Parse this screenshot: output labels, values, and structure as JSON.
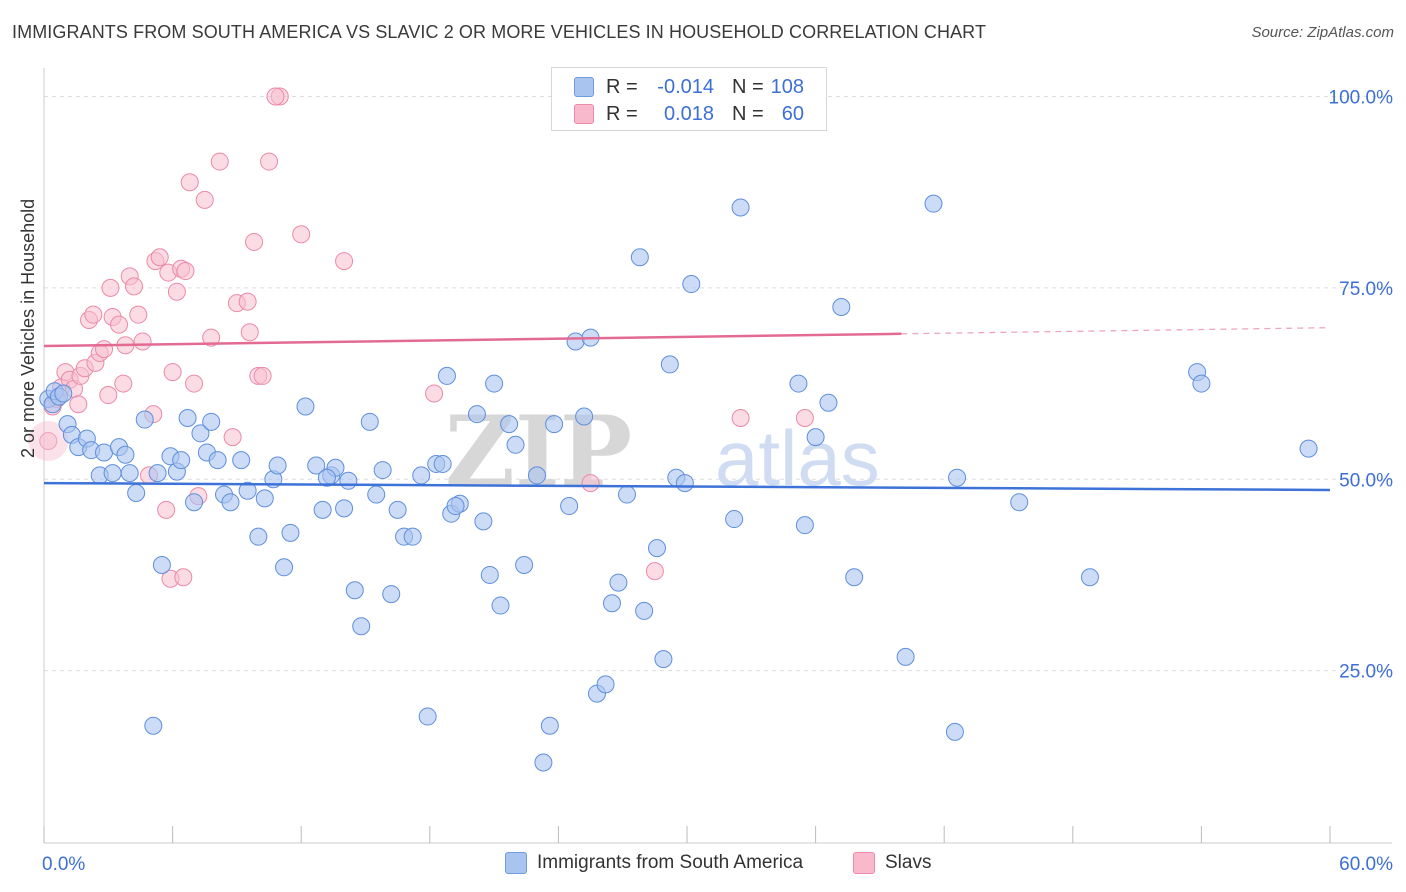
{
  "title": "IMMIGRANTS FROM SOUTH AMERICA VS SLAVIC 2 OR MORE VEHICLES IN HOUSEHOLD CORRELATION CHART",
  "source": "Source: ZipAtlas.com",
  "watermark": {
    "zip": "ZIP",
    "atlas": "atlas"
  },
  "legend": {
    "r_label": "R =",
    "n_label": "N =",
    "rows": [
      {
        "name": "Immigrants from South America",
        "r": "-0.014",
        "n": "108",
        "color": "#a9c4ef",
        "edge": "#6f9be0"
      },
      {
        "name": "Slavs",
        "r": "0.018",
        "n": "60",
        "color": "#f7b9cb",
        "edge": "#ec8aa8"
      }
    ]
  },
  "colors": {
    "blue_fill": "#aac5f0",
    "blue_edge": "#5f8fdc",
    "blue_line": "#3d72d8",
    "pink_fill": "#f7bfd0",
    "pink_edge": "#eb8aa8",
    "pink_line": "#e36a93",
    "axis_text": "#3d6fd6",
    "grid": "#dddddd"
  },
  "chart_data": {
    "type": "scatter",
    "title": "IMMIGRANTS FROM SOUTH AMERICA VS SLAVIC 2 OR MORE VEHICLES IN HOUSEHOLD CORRELATION CHART",
    "xlabel": "",
    "ylabel": "2 or more Vehicles in Household",
    "xlim": [
      0,
      60
    ],
    "ylim": [
      0,
      105
    ],
    "x_tick_labels": [
      {
        "value": 0,
        "label": "0.0%"
      },
      {
        "value": 60,
        "label": "60.0%"
      }
    ],
    "y_ticks": [
      {
        "value": 25,
        "label": "25.0%"
      },
      {
        "value": 50,
        "label": "50.0%"
      },
      {
        "value": 75,
        "label": "75.0%"
      },
      {
        "value": 100,
        "label": "100.0%"
      }
    ],
    "x_minor_ticks": [
      0,
      6,
      12,
      18,
      24,
      30,
      36,
      42,
      48,
      54,
      60
    ],
    "series": [
      {
        "name": "Immigrants from South America",
        "color": "#aac5f0",
        "trend": {
          "x": [
            0,
            60
          ],
          "y": [
            49.5,
            48.6
          ]
        },
        "points": [
          [
            0.2,
            60.5
          ],
          [
            0.4,
            59.8
          ],
          [
            0.5,
            61.5
          ],
          [
            0.7,
            60.8
          ],
          [
            0.9,
            61.2
          ],
          [
            1.1,
            57.2
          ],
          [
            1.3,
            55.8
          ],
          [
            1.6,
            54.2
          ],
          [
            2.0,
            55.3
          ],
          [
            2.2,
            53.8
          ],
          [
            2.6,
            50.5
          ],
          [
            2.8,
            53.5
          ],
          [
            3.2,
            50.8
          ],
          [
            3.5,
            54.2
          ],
          [
            3.8,
            53.2
          ],
          [
            4.0,
            50.8
          ],
          [
            4.3,
            48.2
          ],
          [
            4.7,
            57.8
          ],
          [
            5.1,
            17.8
          ],
          [
            5.3,
            50.8
          ],
          [
            5.5,
            38.8
          ],
          [
            5.9,
            53.0
          ],
          [
            6.2,
            51.0
          ],
          [
            6.4,
            52.5
          ],
          [
            6.7,
            58.0
          ],
          [
            7.0,
            47.0
          ],
          [
            7.3,
            56.0
          ],
          [
            7.6,
            53.5
          ],
          [
            7.8,
            57.5
          ],
          [
            8.1,
            52.5
          ],
          [
            8.4,
            48.0
          ],
          [
            8.7,
            47.0
          ],
          [
            9.2,
            52.5
          ],
          [
            9.5,
            48.5
          ],
          [
            10.0,
            42.5
          ],
          [
            10.3,
            47.5
          ],
          [
            10.7,
            50.0
          ],
          [
            11.2,
            38.5
          ],
          [
            11.5,
            43.0
          ],
          [
            10.9,
            51.8
          ],
          [
            12.2,
            59.5
          ],
          [
            12.7,
            51.8
          ],
          [
            13.0,
            46.0
          ],
          [
            13.4,
            50.5
          ],
          [
            13.6,
            51.5
          ],
          [
            13.2,
            50.2
          ],
          [
            14.2,
            49.8
          ],
          [
            14.5,
            35.5
          ],
          [
            14.8,
            30.8
          ],
          [
            14.0,
            46.2
          ],
          [
            15.2,
            57.5
          ],
          [
            15.5,
            48.0
          ],
          [
            15.8,
            51.2
          ],
          [
            16.2,
            35.0
          ],
          [
            16.5,
            46.0
          ],
          [
            16.8,
            42.5
          ],
          [
            17.2,
            42.5
          ],
          [
            17.6,
            50.5
          ],
          [
            17.9,
            19.0
          ],
          [
            18.3,
            52.0
          ],
          [
            18.6,
            52.0
          ],
          [
            19.0,
            45.5
          ],
          [
            18.8,
            63.5
          ],
          [
            19.4,
            46.8
          ],
          [
            19.2,
            46.5
          ],
          [
            20.2,
            58.5
          ],
          [
            20.5,
            44.5
          ],
          [
            20.8,
            37.5
          ],
          [
            21.3,
            33.5
          ],
          [
            21.7,
            57.2
          ],
          [
            21.0,
            62.5
          ],
          [
            22.0,
            54.5
          ],
          [
            22.4,
            38.8
          ],
          [
            23.0,
            50.5
          ],
          [
            23.3,
            13.0
          ],
          [
            23.6,
            17.8
          ],
          [
            23.8,
            57.2
          ],
          [
            24.5,
            46.5
          ],
          [
            24.8,
            68.0
          ],
          [
            25.5,
            68.5
          ],
          [
            25.2,
            58.2
          ],
          [
            25.8,
            22.0
          ],
          [
            26.2,
            23.2
          ],
          [
            26.5,
            33.8
          ],
          [
            26.8,
            36.5
          ],
          [
            27.2,
            48.0
          ],
          [
            27.8,
            79.0
          ],
          [
            28.0,
            32.8
          ],
          [
            28.6,
            41.0
          ],
          [
            28.9,
            26.5
          ],
          [
            29.2,
            65.0
          ],
          [
            29.5,
            50.2
          ],
          [
            29.9,
            49.5
          ],
          [
            30.2,
            75.5
          ],
          [
            32.2,
            44.8
          ],
          [
            32.5,
            85.5
          ],
          [
            35.2,
            62.5
          ],
          [
            35.5,
            44.0
          ],
          [
            36.0,
            55.5
          ],
          [
            36.6,
            60.0
          ],
          [
            37.2,
            72.5
          ],
          [
            37.8,
            37.2
          ],
          [
            40.2,
            26.8
          ],
          [
            41.5,
            86.0
          ],
          [
            42.5,
            17.0
          ],
          [
            42.6,
            50.2
          ],
          [
            45.5,
            47.0
          ],
          [
            48.8,
            37.2
          ],
          [
            53.8,
            64.0
          ],
          [
            54.0,
            62.5
          ],
          [
            59.0,
            54.0
          ]
        ]
      },
      {
        "name": "Slavs",
        "color": "#f7bfd0",
        "trend": {
          "x": [
            0,
            40
          ],
          "y": [
            67.4,
            69.0
          ]
        },
        "trend_dashed_to": {
          "x": 60,
          "y": 69.8
        },
        "points": [
          [
            0.2,
            55.0
          ],
          [
            0.4,
            59.5
          ],
          [
            0.6,
            60.5
          ],
          [
            0.8,
            62.0
          ],
          [
            1.0,
            64.0
          ],
          [
            1.2,
            63.0
          ],
          [
            1.4,
            61.8
          ],
          [
            1.7,
            63.5
          ],
          [
            1.9,
            64.5
          ],
          [
            2.1,
            70.8
          ],
          [
            2.3,
            71.5
          ],
          [
            2.4,
            65.2
          ],
          [
            2.6,
            66.5
          ],
          [
            2.8,
            67.0
          ],
          [
            3.1,
            75.0
          ],
          [
            3.2,
            71.2
          ],
          [
            3.5,
            70.2
          ],
          [
            3.7,
            62.5
          ],
          [
            3.8,
            67.5
          ],
          [
            4.0,
            76.5
          ],
          [
            4.2,
            75.2
          ],
          [
            4.4,
            71.5
          ],
          [
            4.6,
            68.0
          ],
          [
            4.9,
            50.5
          ],
          [
            5.1,
            58.5
          ],
          [
            5.2,
            78.5
          ],
          [
            5.4,
            79.0
          ],
          [
            5.8,
            77.0
          ],
          [
            6.0,
            64.0
          ],
          [
            6.2,
            74.5
          ],
          [
            6.4,
            77.5
          ],
          [
            6.6,
            77.2
          ],
          [
            6.8,
            88.8
          ],
          [
            7.0,
            62.5
          ],
          [
            7.2,
            47.8
          ],
          [
            7.5,
            86.5
          ],
          [
            7.8,
            68.5
          ],
          [
            8.2,
            91.5
          ],
          [
            8.8,
            55.5
          ],
          [
            9.0,
            73.0
          ],
          [
            9.5,
            73.2
          ],
          [
            9.6,
            69.2
          ],
          [
            9.8,
            81.0
          ],
          [
            10.0,
            63.5
          ],
          [
            10.2,
            63.5
          ],
          [
            10.5,
            91.5
          ],
          [
            11.0,
            100.0
          ],
          [
            10.8,
            100.0
          ],
          [
            12.0,
            82.0
          ],
          [
            14.0,
            78.5
          ],
          [
            18.2,
            61.2
          ],
          [
            25.5,
            49.5
          ],
          [
            28.5,
            38.0
          ],
          [
            32.5,
            58.0
          ],
          [
            35.5,
            58.0
          ],
          [
            5.7,
            46.0
          ],
          [
            5.9,
            37.0
          ],
          [
            6.5,
            37.2
          ],
          [
            3.0,
            61.0
          ],
          [
            1.6,
            59.8
          ]
        ]
      }
    ]
  }
}
